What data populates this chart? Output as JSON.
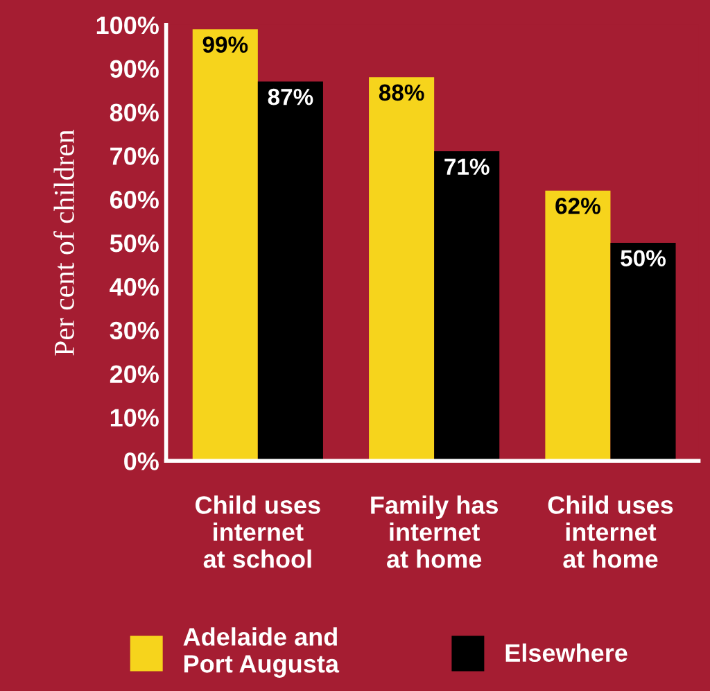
{
  "chart_data": {
    "type": "bar",
    "ylabel": "Per cent of children",
    "categories": [
      "Child uses\ninternet\nat school",
      "Family has\ninternet\nat home",
      "Child uses\ninternet\nat home"
    ],
    "series": [
      {
        "name": "Adelaide and\nPort Augusta",
        "color": "#f6d41c",
        "values": [
          99,
          88,
          62
        ],
        "value_labels": [
          "99%",
          "88%",
          "62%"
        ]
      },
      {
        "name": "Elsewhere",
        "color": "#000000",
        "values": [
          87,
          71,
          50
        ],
        "value_labels": [
          "87%",
          "71%",
          "50%"
        ]
      }
    ],
    "ylim": [
      0,
      100
    ],
    "yticks": [
      {
        "value": 0,
        "label": "0%"
      },
      {
        "value": 10,
        "label": "10%"
      },
      {
        "value": 20,
        "label": "20%"
      },
      {
        "value": 30,
        "label": "30%"
      },
      {
        "value": 40,
        "label": "40%"
      },
      {
        "value": 50,
        "label": "50%"
      },
      {
        "value": 60,
        "label": "60%"
      },
      {
        "value": 70,
        "label": "70%"
      },
      {
        "value": 80,
        "label": "80%"
      },
      {
        "value": 90,
        "label": "90%"
      },
      {
        "value": 100,
        "label": "100%"
      }
    ],
    "grid": false,
    "legend": "bottom"
  }
}
